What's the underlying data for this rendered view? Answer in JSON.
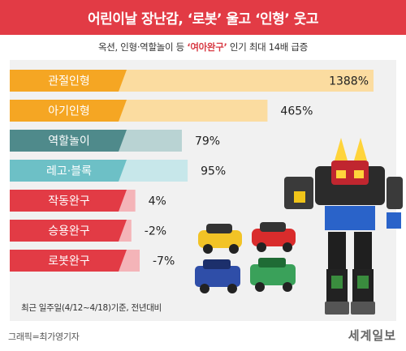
{
  "header": {
    "title": "어린이날 장난감, ‘로봇’ 울고 ‘인형’ 웃고"
  },
  "subtitle": {
    "prefix": "옥션, 인형·역할놀이 등 ",
    "highlight": "‘여아완구’",
    "suffix": " 인기 최대 14배 급증"
  },
  "chart_data": {
    "type": "bar",
    "orientation": "horizontal",
    "categories": [
      "관절인형",
      "아기인형",
      "역할놀이",
      "레고·블록",
      "작동완구",
      "승용완구",
      "로봇완구"
    ],
    "values": [
      1388,
      465,
      79,
      95,
      4,
      -2,
      -7
    ],
    "value_labels": [
      "1388%",
      "465%",
      "79%",
      "95%",
      "4%",
      "-2%",
      "-7%"
    ],
    "unit": "%",
    "colors": {
      "orange": "#f5a623",
      "orange_light": "#fbdca0",
      "teal": "#4f8a8b",
      "teal_light": "#b9d3d3",
      "aqua": "#6dc0c6",
      "aqua_light": "#c7e7ea",
      "red": "#e23b45",
      "red_light": "#f4b4b8"
    },
    "bar_colors": [
      "orange",
      "orange",
      "teal",
      "aqua",
      "red",
      "red",
      "red"
    ]
  },
  "footnote": "최근 일주일(4/12~4/18)기준, 전년대비",
  "credit": "그래픽=최가영기자",
  "logo": "세계일보"
}
